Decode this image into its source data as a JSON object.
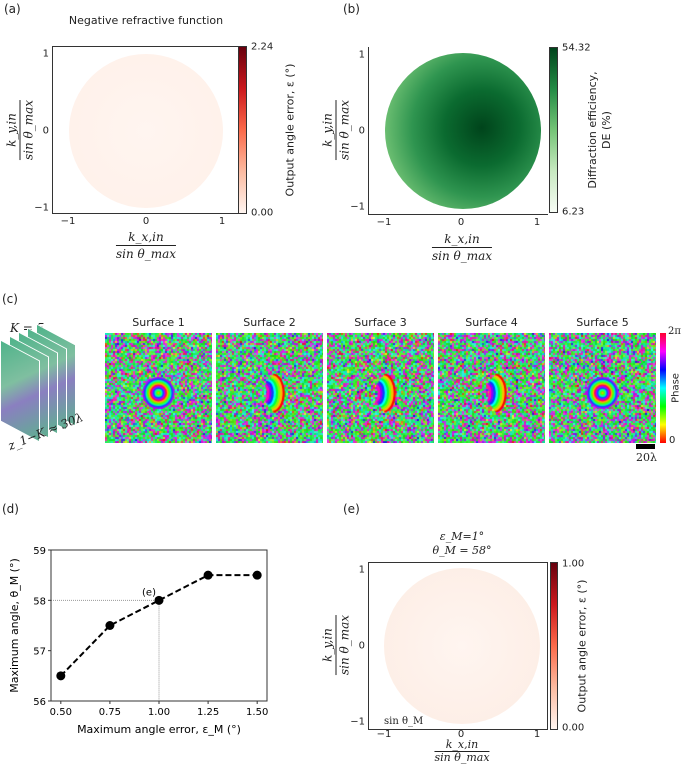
{
  "panel_a": {
    "label": "(a)",
    "title": "Negative refractive function",
    "x_label_num": "k_x,in",
    "x_label_den": "sin θ_max",
    "y_label_num": "k_y,in",
    "y_label_den": "sin θ_max",
    "x_ticks": [
      "−1",
      "0",
      "1"
    ],
    "y_ticks": [
      "1",
      "0",
      "−1"
    ],
    "colorbar": {
      "max": "2.24",
      "min": "0.00",
      "label": "Output angle error, ε (°)",
      "colormap": "reds"
    }
  },
  "panel_b": {
    "label": "(b)",
    "x_label_num": "k_x,in",
    "x_label_den": "sin θ_max",
    "y_label_num": "k_y,in",
    "y_label_den": "sin θ_max",
    "x_ticks": [
      "−1",
      "0",
      "1"
    ],
    "y_ticks": [
      "1",
      "0",
      "−1"
    ],
    "colorbar": {
      "max": "54.32",
      "min": "6.23",
      "label_line1": "Diffraction efficiency,",
      "label_line2": "DE (%)",
      "colormap": "greens"
    }
  },
  "panel_c": {
    "label": "(c)",
    "k_label": "K = 5",
    "spacing_label": "z_1−K ≈ 30λ",
    "surfaces": [
      "Surface 1",
      "Surface 2",
      "Surface 3",
      "Surface 4",
      "Surface 5"
    ],
    "colorbar": {
      "max": "2π",
      "min": "0",
      "label": "Phase",
      "colormap": "hsv"
    },
    "scale_bar": "20λ"
  },
  "panel_d": {
    "label": "(d)"
  },
  "panel_e": {
    "label": "(e)",
    "title_line1": "ε_M=1°",
    "title_line2": "θ_M = 58°",
    "annotation": "sin θ_M",
    "x_label_num": "k_x,in",
    "x_label_den": "sin θ_max",
    "y_label_num": "k_y,in",
    "y_label_den": "sin θ_max",
    "x_ticks": [
      "−1",
      "0",
      "1"
    ],
    "y_ticks": [
      "1",
      "0",
      "−1"
    ],
    "colorbar": {
      "max": "1.00",
      "min": "0.00",
      "label": "Output angle error, ε (°)",
      "colormap": "reds"
    }
  },
  "chart_data": {
    "type": "line",
    "xlabel": "Maximum angle error, ε_M (°)",
    "ylabel": "Maximum angle, θ_M (°)",
    "x": [
      0.5,
      0.75,
      1.0,
      1.25,
      1.5
    ],
    "values": [
      56.5,
      57.5,
      58.0,
      58.5,
      58.5
    ],
    "x_ticks": [
      "0.50",
      "0.75",
      "1.00",
      "1.25",
      "1.50"
    ],
    "y_ticks": [
      "59",
      "58",
      "57",
      "56"
    ],
    "xlim": [
      0.45,
      1.55
    ],
    "ylim": [
      56,
      59
    ],
    "line_style": "dashed",
    "marker": "circle",
    "annotation": {
      "text": "(e)",
      "x": 1.0,
      "y": 58.0
    },
    "grid": false
  }
}
